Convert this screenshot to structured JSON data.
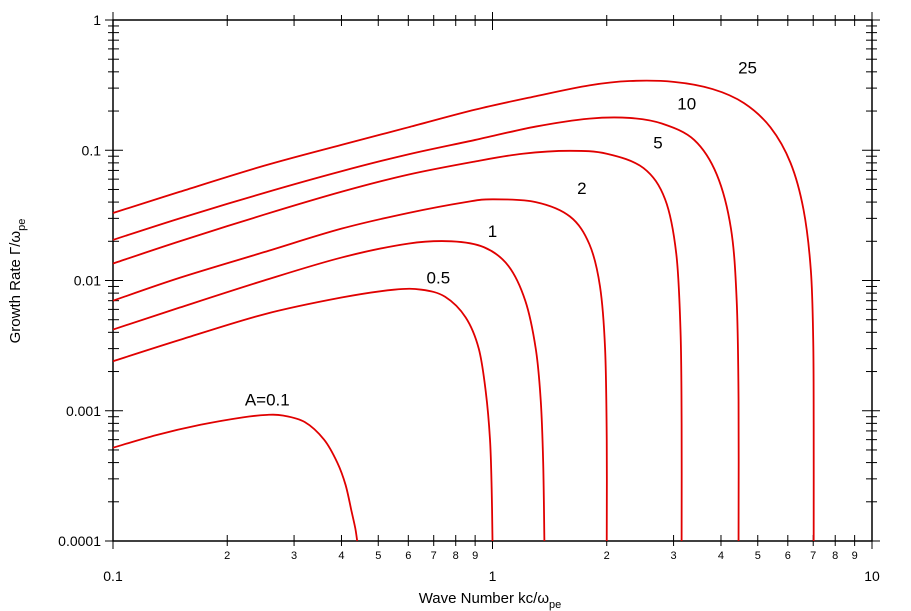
{
  "chart_data": {
    "type": "line",
    "x_scale": "log",
    "y_scale": "log",
    "xlim": [
      0.1,
      10
    ],
    "ylim": [
      0.0001,
      1
    ],
    "x_major_ticks": [
      {
        "v": 0.1,
        "label": "0.1"
      },
      {
        "v": 1,
        "label": "1"
      },
      {
        "v": 10,
        "label": "10"
      }
    ],
    "x_minor_labels": [
      "2",
      "3",
      "4",
      "5",
      "6",
      "7",
      "8",
      "9"
    ],
    "y_major_ticks": [
      {
        "v": 1,
        "label": "1"
      },
      {
        "v": 0.1,
        "label": "0.1"
      },
      {
        "v": 0.01,
        "label": "0.01"
      },
      {
        "v": 0.001,
        "label": "0.001"
      },
      {
        "v": 0.0001,
        "label": "0.0001"
      }
    ],
    "xlabel": "Wave Number   kc/ω",
    "xlabel_sub": "pe",
    "ylabel": "Growth Rate   Γ/ω",
    "ylabel_sub": "pe",
    "line_color": "#e00000",
    "series": [
      {
        "label": "A=0.1",
        "label_at": [
          0.255,
          0.0011
        ],
        "points": [
          [
            0.1,
            0.00052
          ],
          [
            0.13,
            0.00065
          ],
          [
            0.17,
            0.00078
          ],
          [
            0.22,
            0.00089
          ],
          [
            0.255,
            0.00093
          ],
          [
            0.28,
            0.00092
          ],
          [
            0.32,
            0.00082
          ],
          [
            0.36,
            0.0006
          ],
          [
            0.39,
            0.0004
          ],
          [
            0.41,
            0.00027
          ],
          [
            0.425,
            0.00017
          ],
          [
            0.435,
            0.000125
          ],
          [
            0.44,
            0.0001
          ]
        ]
      },
      {
        "label": "0.5",
        "label_at": [
          0.72,
          0.0095
        ],
        "points": [
          [
            0.1,
            0.0024
          ],
          [
            0.15,
            0.0035
          ],
          [
            0.25,
            0.0055
          ],
          [
            0.4,
            0.0074
          ],
          [
            0.55,
            0.0085
          ],
          [
            0.65,
            0.0085
          ],
          [
            0.75,
            0.0075
          ],
          [
            0.85,
            0.0052
          ],
          [
            0.92,
            0.003
          ],
          [
            0.96,
            0.0014
          ],
          [
            0.985,
            0.0006
          ],
          [
            0.995,
            0.00025
          ],
          [
            1.0,
            0.0001
          ]
        ]
      },
      {
        "label": "1",
        "label_at": [
          1.0,
          0.0215
        ],
        "points": [
          [
            0.1,
            0.0042
          ],
          [
            0.15,
            0.0062
          ],
          [
            0.25,
            0.01
          ],
          [
            0.4,
            0.015
          ],
          [
            0.6,
            0.0192
          ],
          [
            0.78,
            0.02
          ],
          [
            0.95,
            0.018
          ],
          [
            1.1,
            0.013
          ],
          [
            1.22,
            0.007
          ],
          [
            1.3,
            0.003
          ],
          [
            1.34,
            0.0012
          ],
          [
            1.36,
            0.0004
          ],
          [
            1.37,
            0.0001
          ]
        ]
      },
      {
        "label": "2",
        "label_at": [
          1.72,
          0.046
        ],
        "points": [
          [
            0.1,
            0.007
          ],
          [
            0.15,
            0.0105
          ],
          [
            0.25,
            0.0165
          ],
          [
            0.4,
            0.025
          ],
          [
            0.6,
            0.033
          ],
          [
            0.85,
            0.04
          ],
          [
            1.0,
            0.042
          ],
          [
            1.3,
            0.04
          ],
          [
            1.6,
            0.031
          ],
          [
            1.8,
            0.019
          ],
          [
            1.92,
            0.009
          ],
          [
            1.98,
            0.003
          ],
          [
            2.0,
            0.0006
          ],
          [
            2.0,
            0.0001
          ]
        ]
      },
      {
        "label": "5",
        "label_at": [
          2.73,
          0.103
        ],
        "points": [
          [
            0.1,
            0.0135
          ],
          [
            0.15,
            0.02
          ],
          [
            0.25,
            0.032
          ],
          [
            0.4,
            0.048
          ],
          [
            0.6,
            0.065
          ],
          [
            0.9,
            0.082
          ],
          [
            1.2,
            0.094
          ],
          [
            1.6,
            0.099
          ],
          [
            2.0,
            0.094
          ],
          [
            2.5,
            0.073
          ],
          [
            2.85,
            0.042
          ],
          [
            3.05,
            0.016
          ],
          [
            3.13,
            0.004
          ],
          [
            3.15,
            0.0008
          ],
          [
            3.15,
            0.0001
          ]
        ]
      },
      {
        "label": "10",
        "label_at": [
          3.25,
          0.205
        ],
        "points": [
          [
            0.1,
            0.0205
          ],
          [
            0.15,
            0.03
          ],
          [
            0.25,
            0.047
          ],
          [
            0.4,
            0.069
          ],
          [
            0.6,
            0.093
          ],
          [
            0.9,
            0.12
          ],
          [
            1.3,
            0.152
          ],
          [
            1.8,
            0.175
          ],
          [
            2.3,
            0.177
          ],
          [
            2.8,
            0.16
          ],
          [
            3.4,
            0.12
          ],
          [
            3.9,
            0.065
          ],
          [
            4.25,
            0.025
          ],
          [
            4.4,
            0.007
          ],
          [
            4.45,
            0.0012
          ],
          [
            4.45,
            0.0001
          ]
        ]
      },
      {
        "label": "25",
        "label_at": [
          4.7,
          0.39
        ],
        "points": [
          [
            0.1,
            0.033
          ],
          [
            0.15,
            0.048
          ],
          [
            0.25,
            0.076
          ],
          [
            0.4,
            0.11
          ],
          [
            0.6,
            0.15
          ],
          [
            0.9,
            0.205
          ],
          [
            1.3,
            0.26
          ],
          [
            1.8,
            0.315
          ],
          [
            2.3,
            0.34
          ],
          [
            3.0,
            0.335
          ],
          [
            3.8,
            0.295
          ],
          [
            4.6,
            0.23
          ],
          [
            5.4,
            0.15
          ],
          [
            6.1,
            0.08
          ],
          [
            6.6,
            0.035
          ],
          [
            6.9,
            0.012
          ],
          [
            7.0,
            0.0035
          ],
          [
            7.02,
            0.0008
          ],
          [
            7.02,
            0.0001
          ]
        ]
      }
    ]
  }
}
